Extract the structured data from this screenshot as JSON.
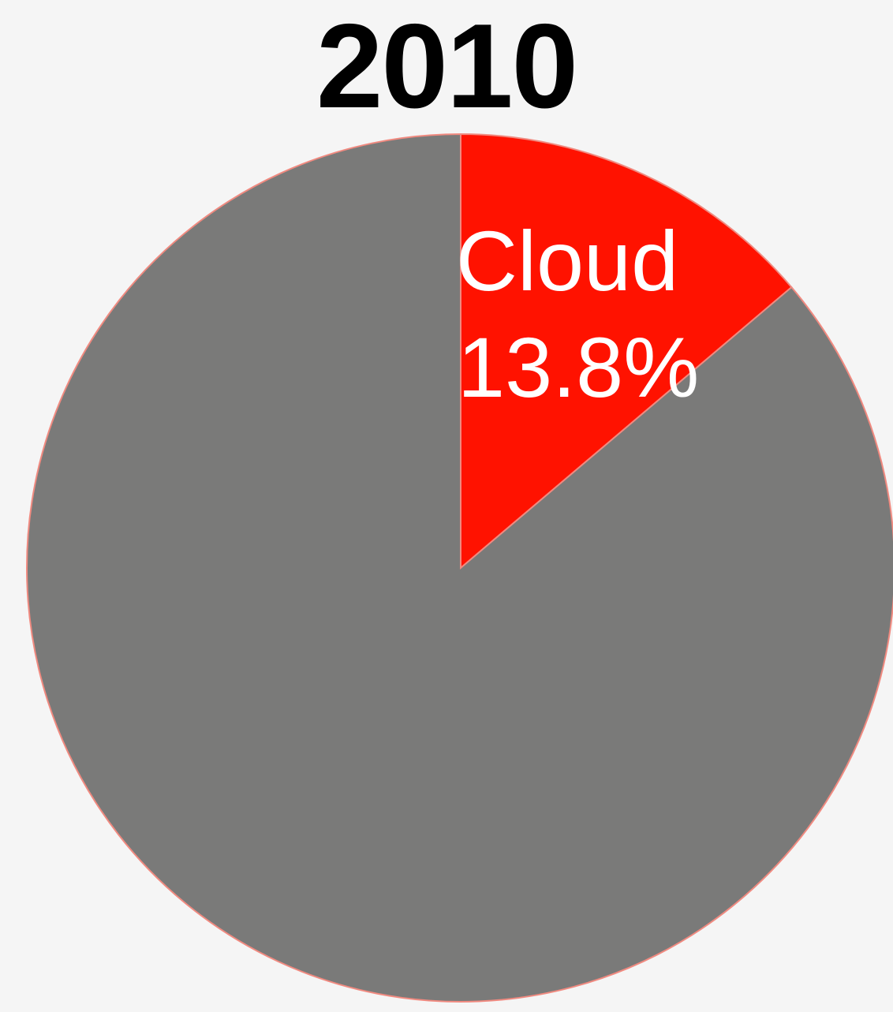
{
  "chart_data": {
    "type": "pie",
    "title": "2010",
    "slices": [
      {
        "label": "Cloud",
        "value": 13.8,
        "value_label": "13.8%",
        "color": "#ff1200"
      },
      {
        "label": "",
        "value": 86.2,
        "value_label": "",
        "color": "#7a7a79"
      }
    ],
    "start_angle": "12 o'clock",
    "direction": "clockwise"
  }
}
